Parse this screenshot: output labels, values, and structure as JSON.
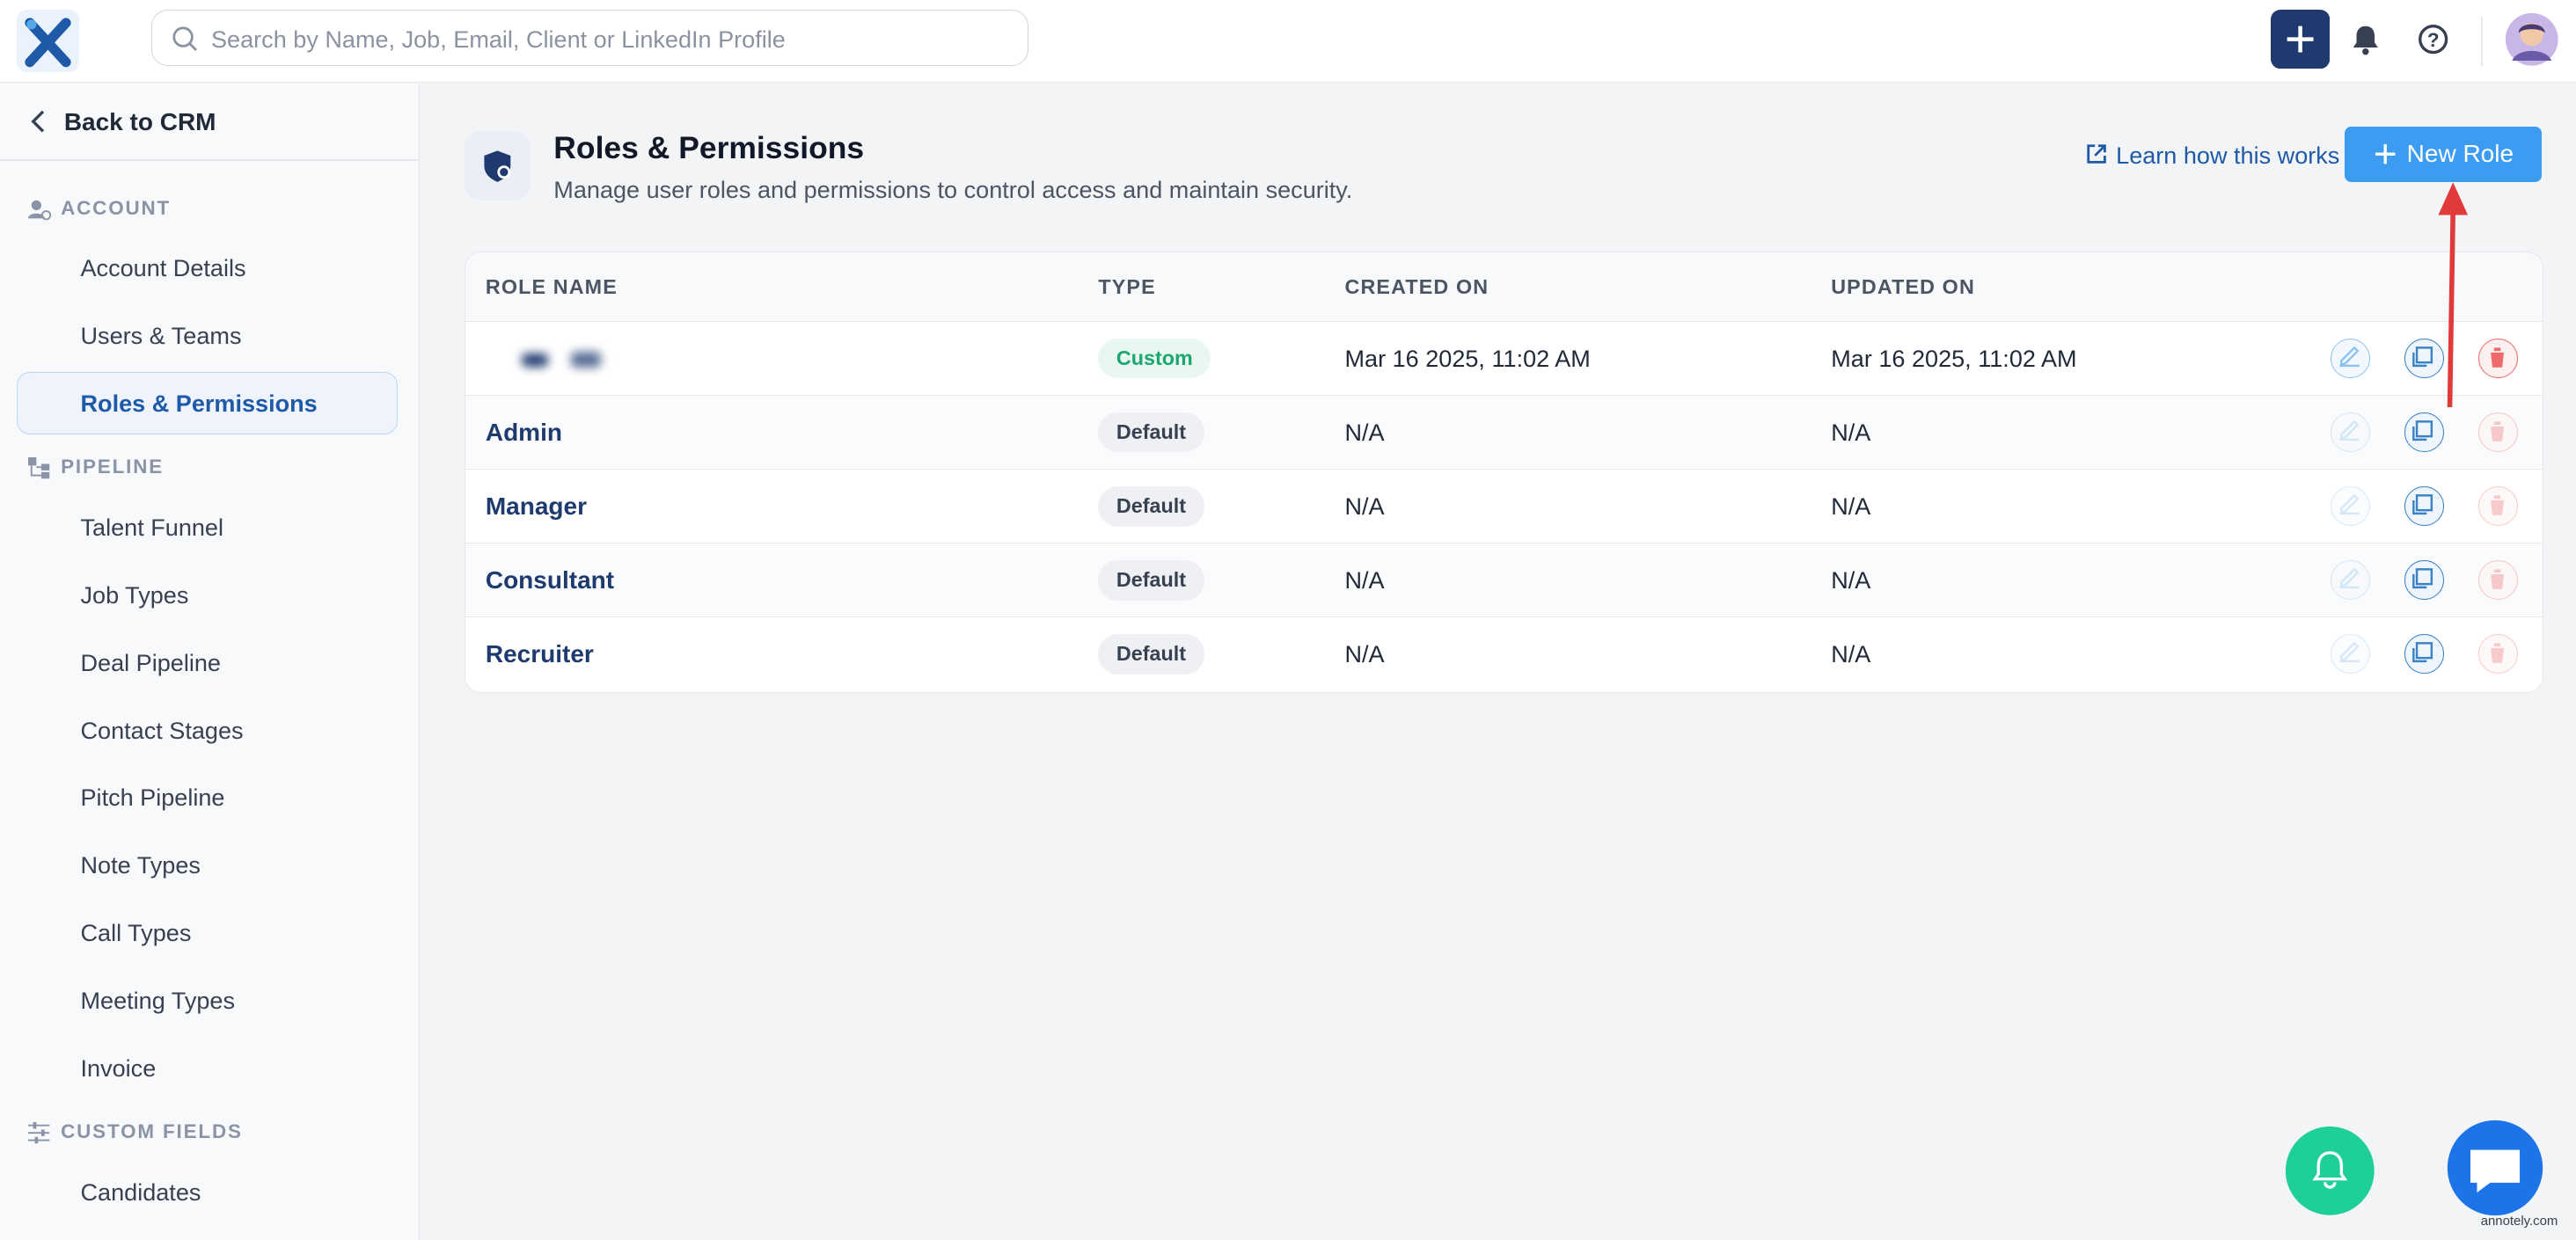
{
  "topbar": {
    "search_placeholder": "Search by Name, Job, Email, Client or LinkedIn Profile"
  },
  "sidebar": {
    "back": "Back to CRM",
    "sections": [
      {
        "title": "ACCOUNT",
        "items": [
          "Account Details",
          "Users & Teams",
          "Roles & Permissions"
        ]
      },
      {
        "title": "PIPELINE",
        "items": [
          "Talent Funnel",
          "Job Types",
          "Deal Pipeline",
          "Contact Stages",
          "Pitch Pipeline",
          "Note Types",
          "Call Types",
          "Meeting Types",
          "Invoice"
        ]
      },
      {
        "title": "CUSTOM FIELDS",
        "items": [
          "Candidates"
        ]
      }
    ]
  },
  "header": {
    "title": "Roles & Permissions",
    "subtitle": "Manage user roles and permissions to control access and maintain security.",
    "learn_link": "Learn how this works",
    "new_role_button": "New Role"
  },
  "table": {
    "columns": [
      "ROLE NAME",
      "TYPE",
      "CREATED ON",
      "UPDATED ON"
    ],
    "rows": [
      [
        null,
        "Custom",
        "Mar 16 2025, 11:02 AM",
        "Mar 16 2025, 11:02 AM"
      ],
      [
        "Admin",
        "Default",
        "N/A",
        "N/A"
      ],
      [
        "Manager",
        "Default",
        "N/A",
        "N/A"
      ],
      [
        "Consultant",
        "Default",
        "N/A",
        "N/A"
      ],
      [
        "Recruiter",
        "Default",
        "N/A",
        "N/A"
      ]
    ]
  },
  "watermark": "annotely.com"
}
